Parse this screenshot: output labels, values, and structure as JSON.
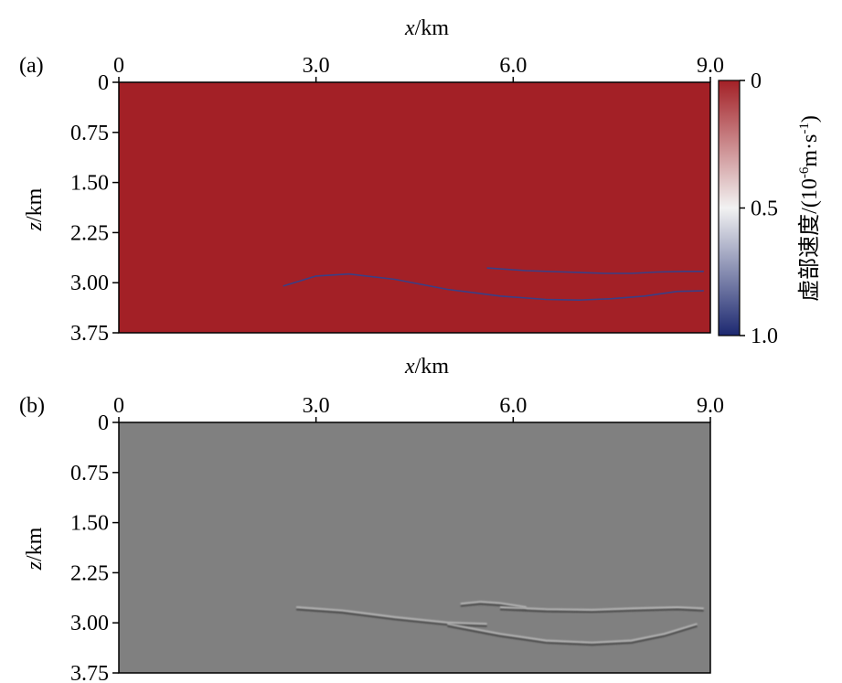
{
  "chart_data": [
    {
      "panel": "(a)",
      "type": "heatmap",
      "xlabel": {
        "var": "x",
        "unit": "/km"
      },
      "ylabel": {
        "var": "z",
        "unit": "/km"
      },
      "xlim": [
        0,
        9.0
      ],
      "ylim": [
        0,
        3.75
      ],
      "x_ticks": [
        "0",
        "3.0",
        "6.0",
        "9.0"
      ],
      "x_tick_values": [
        0,
        3.0,
        6.0,
        9.0
      ],
      "y_ticks": [
        "0",
        "0.75",
        "1.50",
        "2.25",
        "3.00",
        "3.75"
      ],
      "y_tick_values": [
        0,
        0.75,
        1.5,
        2.25,
        3.0,
        3.75
      ],
      "background_value": 0,
      "colors": {
        "field": "#a32026",
        "interface_line": "#3a3f86"
      },
      "interfaces": [
        {
          "x": [
            2.5,
            3.0,
            3.5,
            4.2,
            5.0,
            5.8,
            6.5,
            7.0,
            7.5,
            8.0,
            8.5,
            8.9
          ],
          "z": [
            3.05,
            2.9,
            2.87,
            2.95,
            3.1,
            3.2,
            3.25,
            3.26,
            3.24,
            3.2,
            3.13,
            3.12
          ]
        },
        {
          "x": [
            5.6,
            6.2,
            6.8,
            7.4,
            7.8,
            8.2,
            8.6,
            8.9
          ],
          "z": [
            2.78,
            2.82,
            2.84,
            2.86,
            2.86,
            2.84,
            2.83,
            2.83
          ]
        }
      ],
      "colorbar": {
        "ticks": [
          "0",
          "0.5",
          "1.0"
        ],
        "tick_values": [
          0,
          0.5,
          1.0
        ],
        "range": [
          0,
          1.0
        ],
        "colors": [
          "#a32026",
          "#f2f2f2",
          "#1c2870"
        ],
        "label": "虚部速度/(10",
        "label_sup1": "-6",
        "label_mid": "m·s",
        "label_sup2": "-1",
        "label_end": ")"
      }
    },
    {
      "panel": "(b)",
      "type": "heatmap",
      "xlabel": {
        "var": "x",
        "unit": "/km"
      },
      "ylabel": {
        "var": "z",
        "unit": "/km"
      },
      "xlim": [
        0,
        9.0
      ],
      "ylim": [
        0,
        3.75
      ],
      "x_ticks": [
        "0",
        "3.0",
        "6.0",
        "9.0"
      ],
      "x_tick_values": [
        0,
        3.0,
        6.0,
        9.0
      ],
      "y_ticks": [
        "0",
        "0.75",
        "1.50",
        "2.25",
        "3.00",
        "3.75"
      ],
      "y_tick_values": [
        0,
        0.75,
        1.5,
        2.25,
        3.0,
        3.75
      ],
      "colors": {
        "field": "#808080",
        "dark_event": "#4a4a4a",
        "light_event": "#b8b8b8"
      },
      "events": [
        {
          "x": [
            2.7,
            3.4,
            4.2,
            5.0,
            5.6
          ],
          "z": [
            2.8,
            2.85,
            2.95,
            3.03,
            3.05
          ]
        },
        {
          "x": [
            5.2,
            5.5,
            5.8,
            6.2
          ],
          "z": [
            2.75,
            2.72,
            2.74,
            2.8
          ]
        },
        {
          "x": [
            5.8,
            6.5,
            7.2,
            7.8,
            8.5,
            8.9
          ],
          "z": [
            2.8,
            2.83,
            2.84,
            2.82,
            2.8,
            2.82
          ]
        },
        {
          "x": [
            5.0,
            5.8,
            6.5,
            7.2,
            7.8,
            8.3,
            8.8
          ],
          "z": [
            3.05,
            3.2,
            3.3,
            3.33,
            3.3,
            3.2,
            3.05
          ]
        }
      ]
    }
  ]
}
